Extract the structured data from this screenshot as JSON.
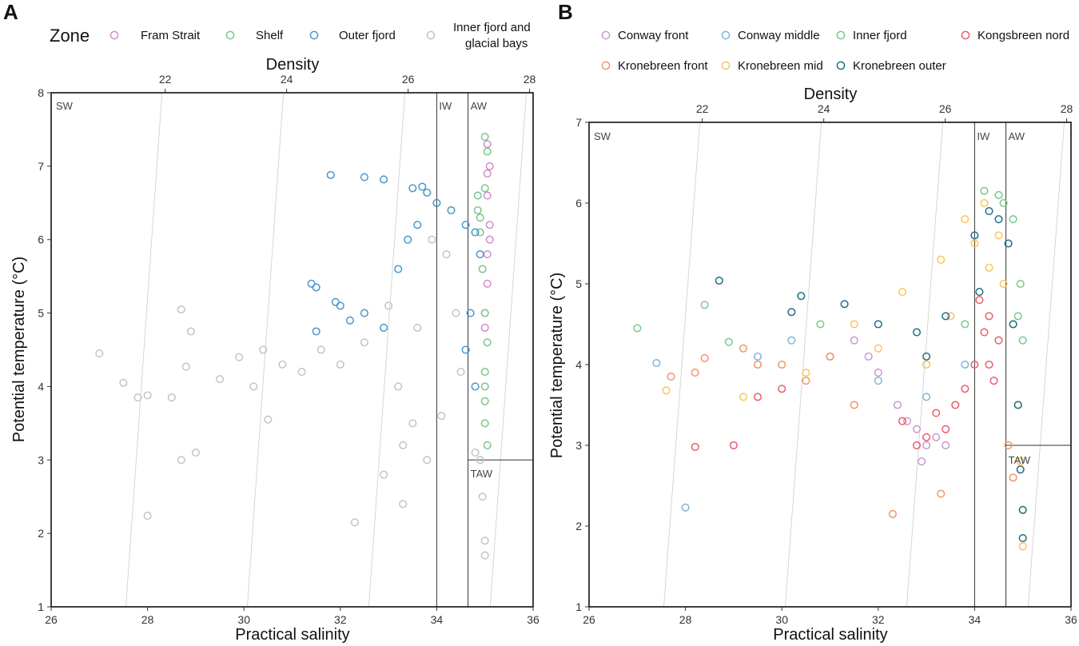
{
  "colors": {
    "pink": "#d58bc8",
    "green": "#7cc68a",
    "blue": "#4a97c9",
    "gray": "#c4c4c4",
    "purple": "#c79ad1",
    "lightblue": "#7fb6d8",
    "orange": "#f2946b",
    "yellow": "#f7c65c",
    "teal": "#1f6e84",
    "red": "#ec5b6a",
    "isopycnal": "#d6d6d6"
  },
  "chart_data": [
    {
      "type": "scatter",
      "panel": "A",
      "title": "",
      "xlabel": "Practical salinity",
      "ylabel": "Potential temperature (°C)",
      "top_axis_label": "Density",
      "xlim": [
        26,
        36
      ],
      "ylim": [
        1,
        8
      ],
      "x_ticks": [
        "26",
        "28",
        "30",
        "32",
        "34",
        "36"
      ],
      "y_ticks": [
        "1",
        "2",
        "3",
        "4",
        "5",
        "6",
        "7",
        "8"
      ],
      "density_ticks": [
        "22",
        "24",
        "26",
        "28"
      ],
      "legend_title": "Zone",
      "legend": [
        {
          "label": "Fram Strait",
          "color_key": "pink"
        },
        {
          "label": "Shelf",
          "color_key": "green"
        },
        {
          "label": "Outer fjord",
          "color_key": "blue"
        },
        {
          "label": "Inner fjord and glacial bays",
          "lines": [
            "Inner fjord and",
            "glacial bays"
          ],
          "color_key": "gray"
        }
      ],
      "water_masses": [
        {
          "label": "SW",
          "S": 26.1,
          "T": 7.88
        },
        {
          "label": "IW",
          "S": 34.05,
          "T": 7.88
        },
        {
          "label": "AW",
          "S": 34.7,
          "T": 7.88
        },
        {
          "label": "TAW",
          "S": 34.7,
          "T": 2.87
        }
      ],
      "boundaries": {
        "iw_s": 34.0,
        "aw_s": 34.65,
        "taw_t": 3.0
      },
      "series": [
        {
          "name": "Fram Strait",
          "color_key": "pink",
          "points": [
            [
              35.0,
              5.0
            ],
            [
              35.05,
              5.4
            ],
            [
              35.05,
              5.8
            ],
            [
              35.1,
              6.2
            ],
            [
              35.05,
              6.6
            ],
            [
              35.1,
              7.0
            ],
            [
              35.05,
              7.3
            ],
            [
              35.0,
              4.8
            ],
            [
              35.1,
              6.0
            ],
            [
              35.05,
              6.9
            ]
          ]
        },
        {
          "name": "Shelf",
          "color_key": "green",
          "points": [
            [
              35.0,
              7.4
            ],
            [
              35.05,
              7.2
            ],
            [
              35.0,
              6.7
            ],
            [
              34.85,
              6.6
            ],
            [
              34.85,
              6.4
            ],
            [
              34.9,
              6.3
            ],
            [
              34.95,
              5.6
            ],
            [
              35.0,
              5.0
            ],
            [
              35.05,
              4.6
            ],
            [
              35.0,
              4.2
            ],
            [
              35.0,
              3.8
            ],
            [
              35.0,
              3.5
            ],
            [
              35.05,
              3.2
            ],
            [
              34.9,
              6.1
            ],
            [
              35.0,
              4.0
            ]
          ]
        },
        {
          "name": "Outer fjord",
          "color_key": "blue",
          "points": [
            [
              31.8,
              6.88
            ],
            [
              32.5,
              6.85
            ],
            [
              32.9,
              6.82
            ],
            [
              33.5,
              6.7
            ],
            [
              33.7,
              6.72
            ],
            [
              33.8,
              6.64
            ],
            [
              34.0,
              6.5
            ],
            [
              34.3,
              6.4
            ],
            [
              34.6,
              6.2
            ],
            [
              34.8,
              6.1
            ],
            [
              33.4,
              6.0
            ],
            [
              33.6,
              6.2
            ],
            [
              33.2,
              5.6
            ],
            [
              31.4,
              5.4
            ],
            [
              31.5,
              5.35
            ],
            [
              31.9,
              5.15
            ],
            [
              32.2,
              4.9
            ],
            [
              32.9,
              4.8
            ],
            [
              31.5,
              4.75
            ],
            [
              34.9,
              5.8
            ],
            [
              34.7,
              5.0
            ],
            [
              34.6,
              4.5
            ],
            [
              34.8,
              4.0
            ],
            [
              32.5,
              5.0
            ],
            [
              32.0,
              5.1
            ]
          ]
        },
        {
          "name": "Inner fjord and glacial bays",
          "color_key": "gray",
          "points": [
            [
              27.0,
              4.45
            ],
            [
              27.8,
              3.85
            ],
            [
              28.0,
              3.88
            ],
            [
              28.7,
              5.05
            ],
            [
              28.9,
              4.75
            ],
            [
              28.8,
              4.27
            ],
            [
              29.5,
              4.1
            ],
            [
              29.9,
              4.4
            ],
            [
              30.2,
              4.0
            ],
            [
              30.4,
              4.5
            ],
            [
              30.8,
              4.3
            ],
            [
              31.2,
              4.2
            ],
            [
              31.6,
              4.5
            ],
            [
              32.0,
              4.3
            ],
            [
              32.5,
              4.6
            ],
            [
              33.0,
              5.1
            ],
            [
              33.2,
              4.0
            ],
            [
              33.5,
              3.5
            ],
            [
              33.3,
              3.2
            ],
            [
              32.9,
              2.8
            ],
            [
              33.3,
              2.4
            ],
            [
              32.3,
              2.15
            ],
            [
              28.0,
              2.24
            ],
            [
              28.7,
              3.0
            ],
            [
              29.0,
              3.1
            ],
            [
              30.5,
              3.55
            ],
            [
              27.5,
              4.05
            ],
            [
              28.5,
              3.85
            ],
            [
              33.9,
              6.0
            ],
            [
              34.2,
              5.8
            ],
            [
              34.4,
              5.0
            ],
            [
              34.5,
              4.2
            ],
            [
              34.9,
              3.0
            ],
            [
              34.95,
              2.5
            ],
            [
              35.0,
              1.9
            ],
            [
              35.0,
              1.7
            ],
            [
              34.8,
              3.1
            ],
            [
              33.8,
              3.0
            ],
            [
              34.1,
              3.6
            ],
            [
              33.6,
              4.8
            ]
          ]
        }
      ]
    },
    {
      "type": "scatter",
      "panel": "B",
      "title": "",
      "xlabel": "Practical salinity",
      "ylabel": "Potential temperature (°C)",
      "top_axis_label": "Density",
      "xlim": [
        26,
        36
      ],
      "ylim": [
        1,
        7
      ],
      "x_ticks": [
        "26",
        "28",
        "30",
        "32",
        "34",
        "36"
      ],
      "y_ticks": [
        "1",
        "2",
        "3",
        "4",
        "5",
        "6",
        "7"
      ],
      "density_ticks": [
        "22",
        "24",
        "26",
        "28"
      ],
      "legend": [
        {
          "label": "Conway front",
          "color_key": "purple"
        },
        {
          "label": "Conway middle",
          "color_key": "lightblue"
        },
        {
          "label": "Inner fjord",
          "color_key": "green"
        },
        {
          "label": "Kongsbreen nord",
          "color_key": "red"
        },
        {
          "label": "Kronebreen front",
          "color_key": "orange"
        },
        {
          "label": "Kronebreen mid",
          "color_key": "yellow"
        },
        {
          "label": "Kronebreen outer",
          "color_key": "teal"
        }
      ],
      "water_masses": [
        {
          "label": "SW",
          "S": 26.1,
          "T": 6.88
        },
        {
          "label": "IW",
          "S": 34.05,
          "T": 6.88
        },
        {
          "label": "AW",
          "S": 34.7,
          "T": 6.88
        },
        {
          "label": "TAW",
          "S": 34.7,
          "T": 2.87
        }
      ],
      "boundaries": {
        "iw_s": 34.0,
        "aw_s": 34.65,
        "taw_t": 3.0
      },
      "series": [
        {
          "name": "Conway front",
          "color_key": "purple",
          "points": [
            [
              31.5,
              4.3
            ],
            [
              32.0,
              3.9
            ],
            [
              32.4,
              3.5
            ],
            [
              32.8,
              3.2
            ],
            [
              33.0,
              3.0
            ],
            [
              33.2,
              3.1
            ],
            [
              32.9,
              2.8
            ],
            [
              33.4,
              3.0
            ],
            [
              31.8,
              4.1
            ],
            [
              32.6,
              3.3
            ]
          ]
        },
        {
          "name": "Conway middle",
          "color_key": "lightblue",
          "points": [
            [
              27.4,
              4.02
            ],
            [
              28.0,
              2.23
            ],
            [
              29.5,
              4.1
            ],
            [
              30.2,
              4.3
            ],
            [
              31.0,
              4.1
            ],
            [
              32.0,
              3.8
            ],
            [
              33.0,
              3.6
            ],
            [
              33.8,
              4.0
            ]
          ]
        },
        {
          "name": "Inner fjord",
          "color_key": "green",
          "points": [
            [
              27.0,
              4.45
            ],
            [
              28.4,
              4.74
            ],
            [
              28.9,
              4.28
            ],
            [
              30.8,
              4.5
            ],
            [
              34.2,
              6.15
            ],
            [
              34.5,
              6.1
            ],
            [
              34.8,
              5.8
            ],
            [
              34.95,
              5.0
            ],
            [
              35.0,
              4.3
            ],
            [
              34.9,
              4.6
            ],
            [
              34.6,
              6.0
            ],
            [
              33.8,
              4.5
            ]
          ]
        },
        {
          "name": "Kongsbreen nord",
          "color_key": "red",
          "points": [
            [
              32.5,
              3.3
            ],
            [
              33.0,
              3.1
            ],
            [
              33.4,
              3.2
            ],
            [
              33.6,
              3.5
            ],
            [
              33.8,
              3.7
            ],
            [
              34.0,
              4.0
            ],
            [
              34.2,
              4.4
            ],
            [
              34.3,
              4.0
            ],
            [
              34.4,
              3.8
            ],
            [
              34.5,
              4.3
            ],
            [
              34.3,
              4.6
            ],
            [
              34.1,
              4.8
            ],
            [
              28.2,
              2.98
            ],
            [
              29.0,
              3.0
            ],
            [
              29.5,
              3.6
            ],
            [
              30.0,
              3.7
            ],
            [
              33.2,
              3.4
            ],
            [
              32.8,
              3.0
            ]
          ]
        },
        {
          "name": "Kronebreen front",
          "color_key": "orange",
          "points": [
            [
              27.7,
              3.85
            ],
            [
              28.2,
              3.9
            ],
            [
              28.4,
              4.08
            ],
            [
              29.2,
              4.2
            ],
            [
              29.5,
              4.0
            ],
            [
              30.0,
              4.0
            ],
            [
              31.0,
              4.1
            ],
            [
              32.3,
              2.15
            ],
            [
              33.3,
              2.4
            ],
            [
              34.7,
              3.0
            ],
            [
              34.8,
              2.6
            ],
            [
              31.5,
              3.5
            ],
            [
              30.5,
              3.8
            ]
          ]
        },
        {
          "name": "Kronebreen mid",
          "color_key": "yellow",
          "points": [
            [
              27.6,
              3.68
            ],
            [
              29.2,
              3.6
            ],
            [
              30.5,
              3.9
            ],
            [
              31.5,
              4.5
            ],
            [
              32.5,
              4.9
            ],
            [
              33.3,
              5.3
            ],
            [
              33.8,
              5.8
            ],
            [
              34.2,
              6.0
            ],
            [
              34.0,
              5.5
            ],
            [
              34.3,
              5.2
            ],
            [
              34.5,
              5.6
            ],
            [
              34.6,
              5.0
            ],
            [
              34.8,
              4.5
            ],
            [
              34.9,
              3.5
            ],
            [
              34.95,
              2.8
            ],
            [
              35.0,
              2.2
            ],
            [
              35.0,
              1.75
            ],
            [
              33.5,
              4.6
            ],
            [
              32.0,
              4.2
            ],
            [
              33.0,
              4.0
            ]
          ]
        },
        {
          "name": "Kronebreen outer",
          "color_key": "teal",
          "points": [
            [
              28.7,
              5.04
            ],
            [
              30.4,
              4.85
            ],
            [
              30.2,
              4.65
            ],
            [
              31.3,
              4.75
            ],
            [
              32.0,
              4.5
            ],
            [
              32.8,
              4.4
            ],
            [
              33.4,
              4.6
            ],
            [
              34.0,
              5.6
            ],
            [
              34.3,
              5.9
            ],
            [
              34.5,
              5.8
            ],
            [
              34.7,
              5.5
            ],
            [
              34.8,
              4.5
            ],
            [
              34.9,
              3.5
            ],
            [
              34.95,
              2.7
            ],
            [
              35.0,
              2.2
            ],
            [
              35.0,
              1.85
            ],
            [
              33.0,
              4.1
            ],
            [
              34.1,
              4.9
            ]
          ]
        }
      ]
    }
  ]
}
